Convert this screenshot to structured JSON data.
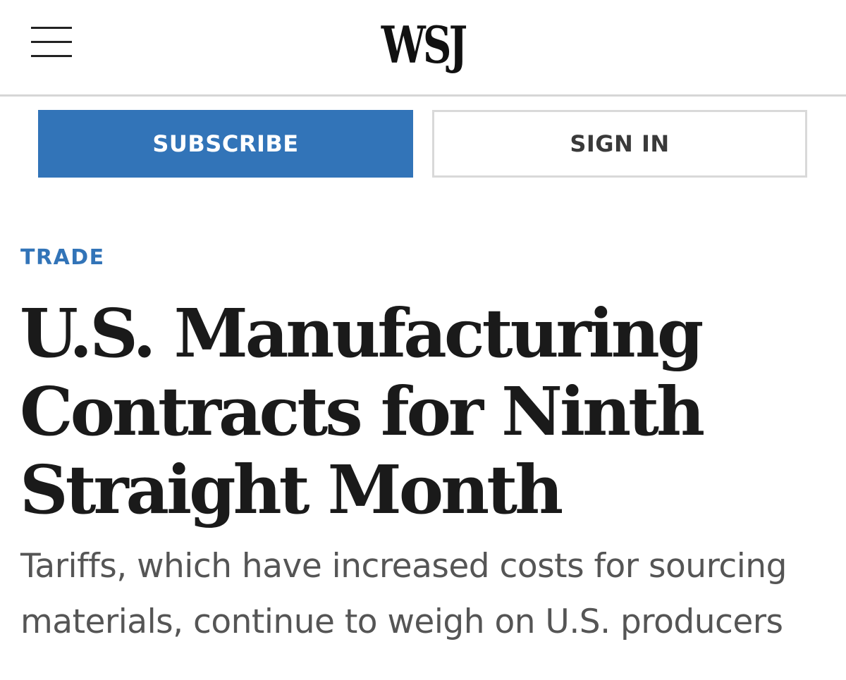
{
  "header": {
    "logo": "WSJ",
    "menu_icon": "hamburger-menu-icon"
  },
  "actions": {
    "subscribe_label": "SUBSCRIBE",
    "signin_label": "SIGN IN"
  },
  "article": {
    "section": "TRADE",
    "headline_lines": [
      "U.S. Manufacturing",
      "Contracts for Ninth",
      "Straight Month"
    ],
    "dek_lines": [
      "Tariffs, which have increased costs for sourcing",
      "materials, continue to weigh on U.S. producers"
    ]
  },
  "colors": {
    "accent_blue": "#3274b8",
    "text_dark": "#1a1a1a",
    "text_gray": "#555555",
    "border_gray": "#d9d9d9"
  }
}
